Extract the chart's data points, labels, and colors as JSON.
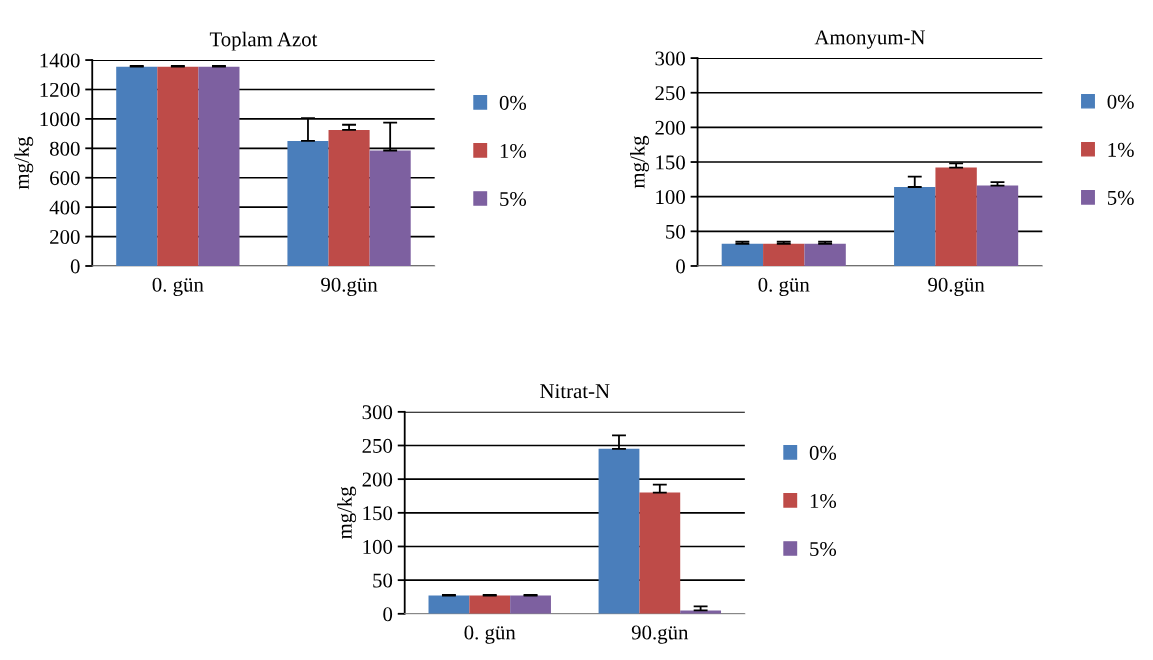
{
  "chart_data": [
    {
      "type": "bar",
      "title": "Toplam Azot",
      "ylabel": "mg/kg",
      "categories": [
        "0. gün",
        "90.gün"
      ],
      "ylim": [
        0,
        1400
      ],
      "yticks": [
        0,
        200,
        400,
        600,
        800,
        1000,
        1200,
        1400
      ],
      "grid": "y",
      "legend": "right",
      "series": [
        {
          "name": "0%",
          "color": "#4a7ebb",
          "values": [
            1355,
            850
          ],
          "errors": [
            5,
            155
          ]
        },
        {
          "name": "1%",
          "color": "#be4b48",
          "values": [
            1355,
            925
          ],
          "errors": [
            5,
            35
          ]
        },
        {
          "name": "5%",
          "color": "#7d60a0",
          "values": [
            1355,
            785
          ],
          "errors": [
            5,
            190
          ]
        }
      ]
    },
    {
      "type": "bar",
      "title": "Amonyum-N",
      "ylabel": "mg/kg",
      "categories": [
        "0. gün",
        "90.gün"
      ],
      "ylim": [
        0,
        300
      ],
      "yticks": [
        0,
        50,
        100,
        150,
        200,
        250,
        300
      ],
      "grid": "y",
      "legend": "right",
      "series": [
        {
          "name": "0%",
          "color": "#4a7ebb",
          "values": [
            32,
            114
          ],
          "errors": [
            3,
            15
          ]
        },
        {
          "name": "1%",
          "color": "#be4b48",
          "values": [
            32,
            142
          ],
          "errors": [
            3,
            6
          ]
        },
        {
          "name": "5%",
          "color": "#7d60a0",
          "values": [
            32,
            116
          ],
          "errors": [
            3,
            5
          ]
        }
      ]
    },
    {
      "type": "bar",
      "title": "Nitrat-N",
      "ylabel": "mg/kg",
      "categories": [
        "0. gün",
        "90.gün"
      ],
      "ylim": [
        0,
        300
      ],
      "yticks": [
        0,
        50,
        100,
        150,
        200,
        250,
        300
      ],
      "grid": "y",
      "legend": "right",
      "series": [
        {
          "name": "0%",
          "color": "#4a7ebb",
          "values": [
            27,
            245
          ],
          "errors": [
            1,
            20
          ]
        },
        {
          "name": "1%",
          "color": "#be4b48",
          "values": [
            27,
            180
          ],
          "errors": [
            1,
            12
          ]
        },
        {
          "name": "5%",
          "color": "#7d60a0",
          "values": [
            27,
            5
          ],
          "errors": [
            1,
            6
          ]
        }
      ]
    }
  ]
}
